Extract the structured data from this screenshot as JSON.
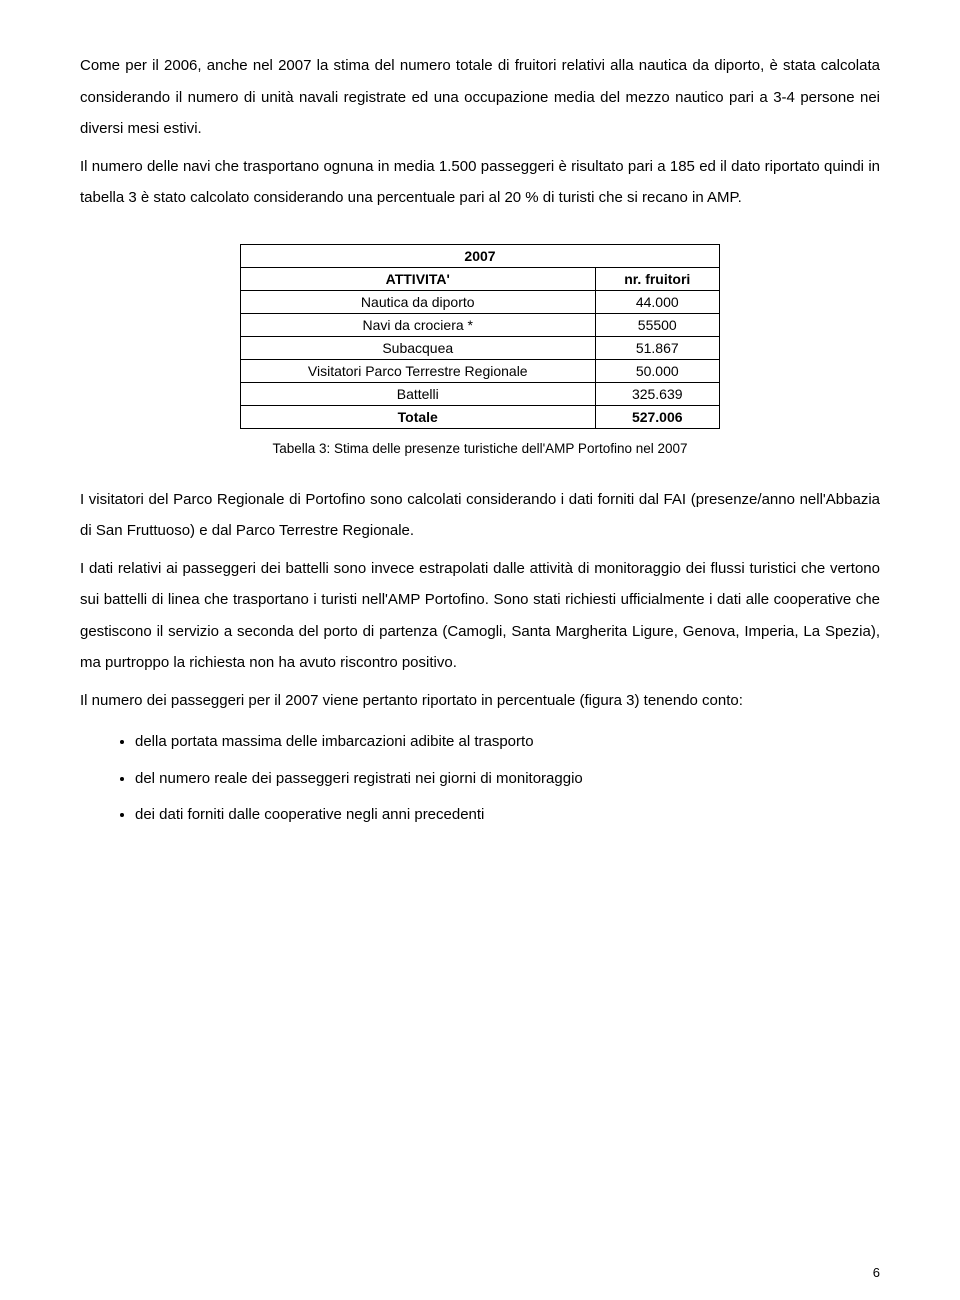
{
  "paragraphs": {
    "p1": "Come per il 2006, anche nel 2007 la stima del numero totale di fruitori relativi alla nautica da diporto, è stata calcolata considerando il numero di unità navali registrate ed una occupazione media del mezzo nautico pari a 3-4 persone nei diversi mesi estivi.",
    "p2": "Il numero delle navi che trasportano ognuna in media 1.500 passeggeri è risultato pari a 185 ed il dato riportato quindi in tabella 3 è stato calcolato considerando una percentuale pari al 20 % di turisti che si recano in AMP.",
    "p3": "I visitatori del Parco Regionale di Portofino sono calcolati considerando i dati forniti dal FAI (presenze/anno nell'Abbazia di San Fruttuoso) e dal Parco Terrestre Regionale.",
    "p4": "I dati relativi ai passeggeri dei battelli sono invece estrapolati dalle attività di monitoraggio dei flussi turistici che vertono sui battelli di linea che trasportano i turisti nell'AMP Portofino. Sono stati richiesti ufficialmente i dati alle cooperative che gestiscono il servizio a seconda del porto di partenza (Camogli, Santa Margherita Ligure, Genova, Imperia, La Spezia), ma purtroppo la richiesta non ha avuto riscontro positivo.",
    "p5": "Il numero dei passeggeri per il 2007 viene pertanto riportato in percentuale (figura 3) tenendo conto:"
  },
  "table": {
    "year": "2007",
    "col1": "ATTIVITA'",
    "col2": "nr. fruitori",
    "rows": [
      {
        "activity": "Nautica da diporto",
        "value": "44.000"
      },
      {
        "activity": "Navi da crociera *",
        "value": "55500"
      },
      {
        "activity": "Subacquea",
        "value": "51.867"
      },
      {
        "activity": "Visitatori Parco Terrestre Regionale",
        "value": "50.000"
      },
      {
        "activity": "Battelli",
        "value": "325.639"
      },
      {
        "activity": "Totale",
        "value": "527.006"
      }
    ],
    "caption": "Tabella 3: Stima delle presenze turistiche dell'AMP Portofino nel 2007"
  },
  "bullets": [
    "della portata massima delle imbarcazioni adibite al trasporto",
    "del numero reale dei passeggeri registrati nei giorni di monitoraggio",
    "dei dati forniti dalle cooperative negli anni precedenti"
  ],
  "page_number": "6"
}
